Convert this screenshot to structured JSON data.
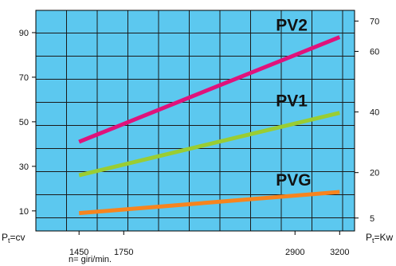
{
  "chart_data": {
    "type": "line",
    "x_ticks": [
      1450,
      1750,
      2900,
      3200
    ],
    "xlim": [
      1160,
      3300
    ],
    "xlabel": "n= giri/min.",
    "y_left": {
      "label_prefix": "P",
      "label_subscript": "t",
      "label_suffix": "=cv",
      "ticks": [
        10,
        30,
        50,
        70,
        90
      ],
      "ylim": [
        1,
        100
      ]
    },
    "y_right": {
      "label_prefix": "P",
      "label_subscript": "t",
      "label_suffix": "=Kw",
      "ticks": [
        5,
        20,
        40,
        60,
        70
      ]
    },
    "grid": true,
    "series": [
      {
        "name": "PV2",
        "color": "#e0127b",
        "x": [
          1450,
          3200
        ],
        "y": [
          41,
          88
        ]
      },
      {
        "name": "PV1",
        "color": "#9acd32",
        "x": [
          1450,
          3200
        ],
        "y": [
          26,
          54
        ]
      },
      {
        "name": "PVG",
        "color": "#f7841e",
        "x": [
          1450,
          3200
        ],
        "y": [
          9,
          18.5
        ]
      }
    ]
  }
}
